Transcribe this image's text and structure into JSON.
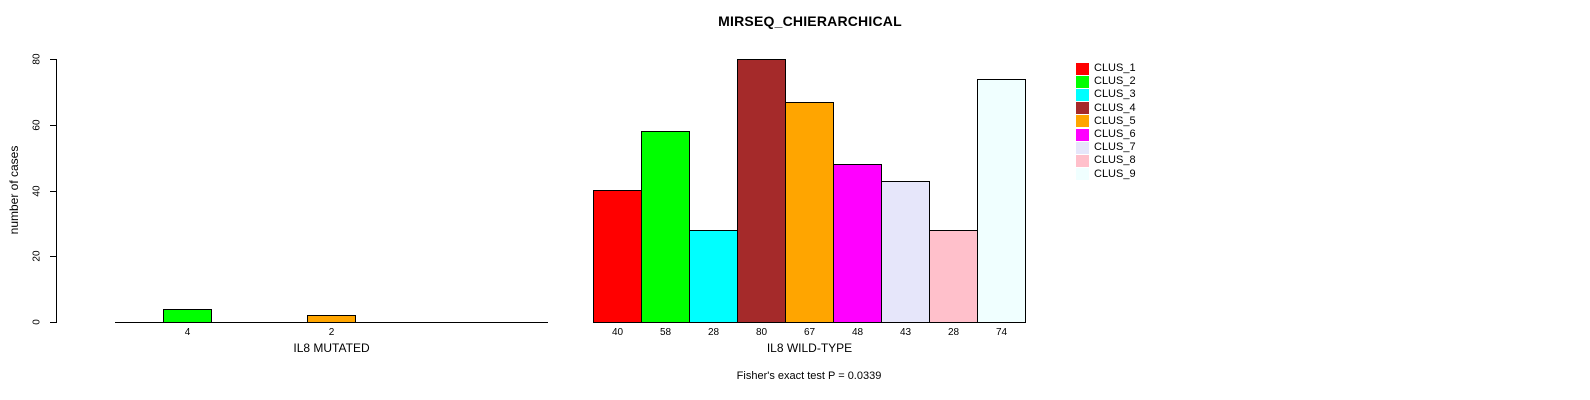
{
  "chart_data": {
    "type": "bar",
    "title": "MIRSEQ_CHIERARCHICAL",
    "ylabel": "number of cases",
    "ylim": [
      0,
      80
    ],
    "yticks": [
      0,
      20,
      40,
      60,
      80
    ],
    "grid": false,
    "legend_position": "right",
    "annotation": "Fisher's exact test P = 0.0339",
    "clusters": [
      {
        "name": "CLUS_1",
        "color": "#FF0000"
      },
      {
        "name": "CLUS_2",
        "color": "#00FF00"
      },
      {
        "name": "CLUS_3",
        "color": "#00FFFF"
      },
      {
        "name": "CLUS_4",
        "color": "#A52A2A"
      },
      {
        "name": "CLUS_5",
        "color": "#FFA500"
      },
      {
        "name": "CLUS_6",
        "color": "#FF00FF"
      },
      {
        "name": "CLUS_7",
        "color": "#E6E6FA"
      },
      {
        "name": "CLUS_8",
        "color": "#FFC0CB"
      },
      {
        "name": "CLUS_9",
        "color": "#F0FFFF"
      }
    ],
    "panels": [
      {
        "xlabel": "IL8 MUTATED",
        "values": [
          0,
          4,
          0,
          0,
          2,
          0,
          0,
          0,
          0
        ]
      },
      {
        "xlabel": "IL8 WILD-TYPE",
        "values": [
          40,
          58,
          28,
          80,
          67,
          48,
          43,
          28,
          74
        ]
      }
    ]
  }
}
